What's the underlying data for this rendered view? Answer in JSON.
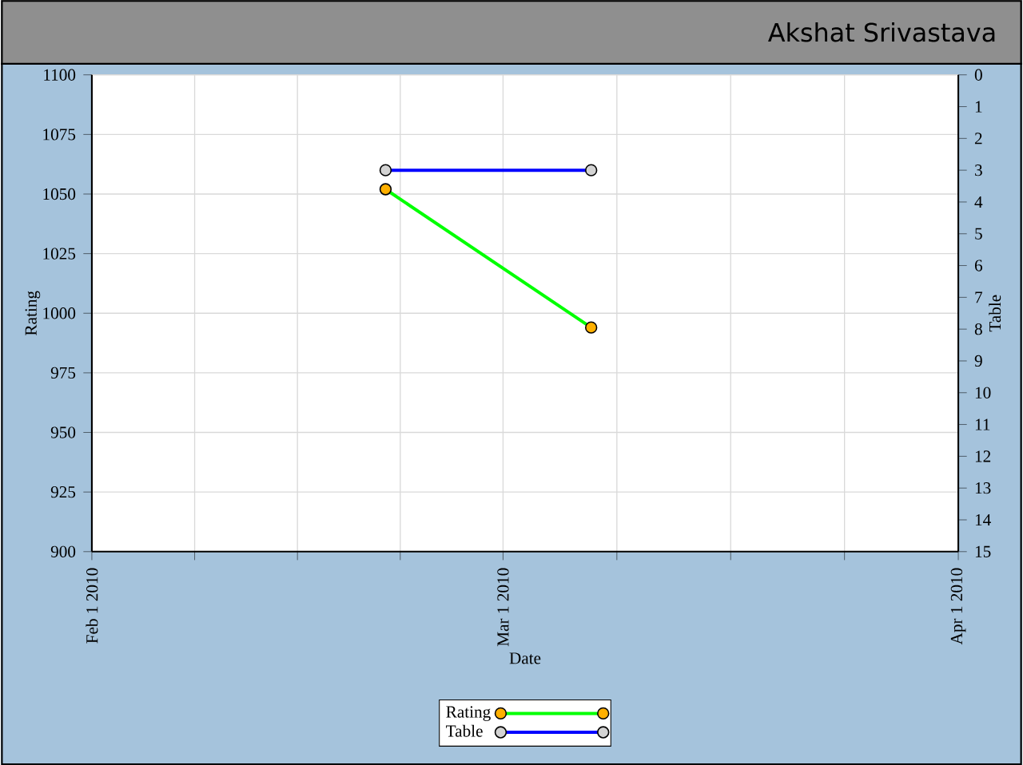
{
  "chart_data": {
    "type": "line",
    "title": "Akshat Srivastava",
    "xlabel": "Date",
    "ylabel": "Rating",
    "y2label": "Table",
    "xlim": [
      "2010-02-01",
      "2010-04-01"
    ],
    "xticks": [
      {
        "value": "2010-02-01",
        "label": "Feb 1 2010"
      },
      {
        "value": "2010-02-08",
        "label": null
      },
      {
        "value": "2010-02-15",
        "label": null
      },
      {
        "value": "2010-02-22",
        "label": null
      },
      {
        "value": "2010-03-01",
        "label": "Mar 1 2010"
      },
      {
        "value": "2010-03-08T18:00",
        "label": null
      },
      {
        "value": "2010-03-16T12:00",
        "label": null
      },
      {
        "value": "2010-03-24T06:00",
        "label": null
      },
      {
        "value": "2010-04-01",
        "label": "Apr 1 2010"
      }
    ],
    "ylim": [
      900,
      1100
    ],
    "yticks": [
      900,
      925,
      950,
      975,
      1000,
      1025,
      1050,
      1075,
      1100
    ],
    "y2lim": [
      15,
      0
    ],
    "y2ticks": [
      0,
      1,
      2,
      3,
      4,
      5,
      6,
      7,
      8,
      9,
      10,
      11,
      12,
      13,
      14,
      15
    ],
    "x": [
      "2010-02-21",
      "2010-03-07"
    ],
    "series": [
      {
        "name": "Rating",
        "color": "#00ff00",
        "values": [
          1052,
          994
        ]
      },
      {
        "name": "Table",
        "color": "#0000ff",
        "values": [
          3,
          3
        ],
        "axis": "y2"
      }
    ],
    "grid": true,
    "legend": "bottom",
    "marker": "circle"
  }
}
